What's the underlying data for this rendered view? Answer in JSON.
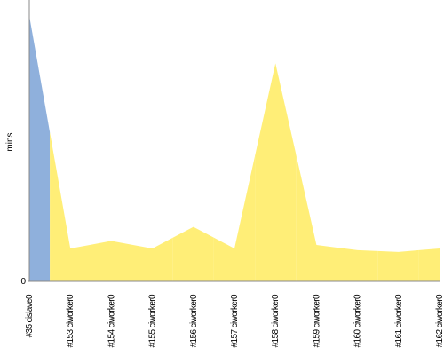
{
  "chart_data": {
    "type": "area",
    "y_label": "mins",
    "categories": [
      "#35 cislave0",
      "#153 ciworker0",
      "#154 ciworker0",
      "#155 ciworker0",
      "#156 ciworker0",
      "#157 ciworker0",
      "#158 ciworker0",
      "#159 ciworker0",
      "#160 ciworker0",
      "#161 ciworker0",
      "#162 ciworker0"
    ],
    "values": [
      15.1,
      1.87,
      2.3,
      1.87,
      3.1,
      1.87,
      12.4,
      2.07,
      1.77,
      1.67,
      1.87
    ],
    "colors": [
      "#8fb0dc",
      "#ffee77",
      "#ffee77",
      "#ffee77",
      "#ffee77",
      "#ffee77",
      "#ffee77",
      "#ffee77",
      "#ffee77",
      "#ffee77",
      "#ffee77"
    ],
    "ylim": [
      0,
      16
    ],
    "yticks": [
      0
    ]
  }
}
